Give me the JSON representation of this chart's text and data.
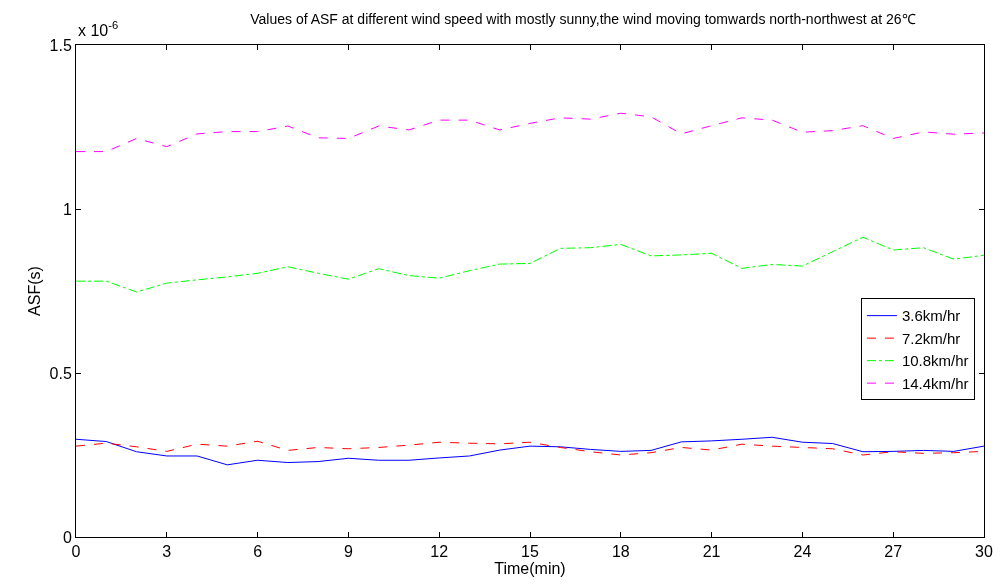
{
  "chart_data": {
    "type": "line",
    "title": "Values of ASF at different wind speed with mostly sunny,the wind moving tomwards north-northwest at 26℃",
    "xlabel": "Time(min)",
    "ylabel": "ASF(s)",
    "annotations": [
      "x 10$^{-6}$"
    ],
    "x": [
      0,
      1,
      2,
      3,
      4,
      5,
      6,
      7,
      8,
      9,
      10,
      11,
      12,
      13,
      14,
      15,
      16,
      17,
      18,
      19,
      20,
      21,
      22,
      23,
      24,
      25,
      26,
      27,
      28,
      29,
      30
    ],
    "series": [
      {
        "name": "3.6km/hr",
        "color": "#0000ff",
        "line_style": "solid",
        "values": [
          0.298,
          0.291,
          0.26,
          0.247,
          0.247,
          0.22,
          0.234,
          0.227,
          0.23,
          0.24,
          0.234,
          0.234,
          0.241,
          0.247,
          0.265,
          0.277,
          0.275,
          0.267,
          0.261,
          0.264,
          0.29,
          0.293,
          0.298,
          0.304,
          0.289,
          0.285,
          0.26,
          0.261,
          0.264,
          0.261,
          0.277
        ]
      },
      {
        "name": "7.2km/hr",
        "color": "#ff0000",
        "line_style": "dashed",
        "values": [
          0.277,
          0.286,
          0.275,
          0.261,
          0.283,
          0.277,
          0.292,
          0.264,
          0.273,
          0.269,
          0.273,
          0.28,
          0.289,
          0.286,
          0.284,
          0.289,
          0.273,
          0.26,
          0.25,
          0.257,
          0.273,
          0.265,
          0.283,
          0.277,
          0.273,
          0.269,
          0.25,
          0.26,
          0.255,
          0.257,
          0.261
        ]
      },
      {
        "name": "10.8km/hr",
        "color": "#00ff00",
        "line_style": "dashdot",
        "values": [
          0.78,
          0.78,
          0.747,
          0.774,
          0.784,
          0.793,
          0.804,
          0.824,
          0.804,
          0.786,
          0.818,
          0.797,
          0.789,
          0.812,
          0.832,
          0.834,
          0.88,
          0.882,
          0.892,
          0.857,
          0.86,
          0.865,
          0.819,
          0.831,
          0.826,
          0.87,
          0.914,
          0.875,
          0.882,
          0.847,
          0.859
        ]
      },
      {
        "name": "14.4km/hr",
        "color": "#ff00ff",
        "line_style": "dashed",
        "values": [
          1.175,
          1.175,
          1.215,
          1.19,
          1.229,
          1.236,
          1.236,
          1.253,
          1.217,
          1.215,
          1.253,
          1.241,
          1.271,
          1.271,
          1.241,
          1.261,
          1.278,
          1.274,
          1.292,
          1.281,
          1.229,
          1.254,
          1.278,
          1.271,
          1.234,
          1.239,
          1.254,
          1.215,
          1.235,
          1.228,
          1.232
        ]
      }
    ],
    "xlim": [
      0,
      30
    ],
    "xticks": [
      0,
      3,
      6,
      9,
      12,
      15,
      18,
      21,
      24,
      27,
      30
    ],
    "ylim": [
      0,
      1.5
    ],
    "yticks": [
      0,
      0.5,
      1,
      1.5
    ],
    "legend": "right",
    "marker": "none"
  }
}
